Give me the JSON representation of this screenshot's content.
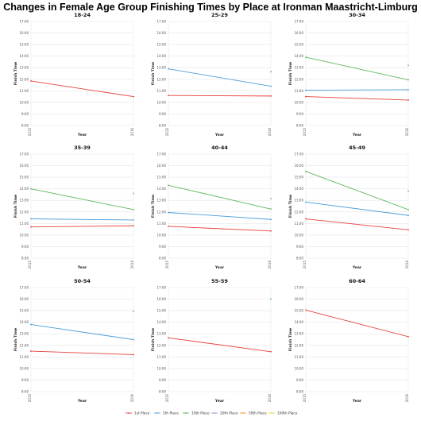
{
  "title": "Changes in Female Age Group Finishing Times by Place at Ironman Maastricht-Limburg",
  "legend": [
    "1st Place",
    "5th Place",
    "10th Place",
    "20th Place",
    "50th Place",
    "100th Place"
  ],
  "colors": {
    "1st Place": "#e8413c",
    "5th Place": "#4a9fd8",
    "10th Place": "#5cb85c",
    "20th Place": "#9b8fc4",
    "50th Place": "#f0a030",
    "100th Place": "#f0d030"
  },
  "chart_data": [
    {
      "type": "line",
      "title": "18-24",
      "xlabel": "Year",
      "ylabel": "Finish Time",
      "x": [
        "2015",
        "2016"
      ],
      "yticks": [
        "8:00",
        "9:00",
        "10:00",
        "11:00",
        "12:00",
        "13:00",
        "14:00",
        "15:00",
        "16:00",
        "17:00"
      ],
      "ylim": [
        8,
        17
      ],
      "series": [
        {
          "name": "1st Place",
          "values": [
            11.85,
            10.5
          ]
        }
      ]
    },
    {
      "type": "line",
      "title": "25-29",
      "xlabel": "Year",
      "ylabel": "Finish Time",
      "x": [
        "2015",
        "2016"
      ],
      "yticks": [
        "8:00",
        "9:00",
        "10:00",
        "11:00",
        "12:00",
        "13:00",
        "14:00",
        "15:00",
        "16:00",
        "17:00"
      ],
      "ylim": [
        8,
        17
      ],
      "series": [
        {
          "name": "1st Place",
          "values": [
            10.6,
            10.55
          ]
        },
        {
          "name": "5th Place",
          "values": [
            12.9,
            11.4
          ]
        },
        {
          "name": "10th Place",
          "values": [
            null,
            12.65
          ]
        }
      ]
    },
    {
      "type": "line",
      "title": "30-34",
      "xlabel": "Year",
      "ylabel": "Finish Time",
      "x": [
        "2015",
        "2016"
      ],
      "yticks": [
        "8:00",
        "9:00",
        "10:00",
        "11:00",
        "12:00",
        "13:00",
        "14:00",
        "15:00",
        "16:00",
        "17:00"
      ],
      "ylim": [
        8,
        17
      ],
      "series": [
        {
          "name": "1st Place",
          "values": [
            10.5,
            10.2
          ]
        },
        {
          "name": "5th Place",
          "values": [
            11.05,
            11.1
          ]
        },
        {
          "name": "10th Place",
          "values": [
            13.9,
            11.95
          ]
        },
        {
          "name": "20th Place",
          "values": [
            null,
            13.2
          ]
        }
      ]
    },
    {
      "type": "line",
      "title": "35-39",
      "xlabel": "Year",
      "ylabel": "Finish Time",
      "x": [
        "2015",
        "2016"
      ],
      "yticks": [
        "8:00",
        "9:00",
        "10:00",
        "11:00",
        "12:00",
        "13:00",
        "14:00",
        "15:00",
        "16:00",
        "17:00"
      ],
      "ylim": [
        8,
        17
      ],
      "series": [
        {
          "name": "1st Place",
          "values": [
            10.7,
            10.8
          ]
        },
        {
          "name": "5th Place",
          "values": [
            11.4,
            11.3
          ]
        },
        {
          "name": "10th Place",
          "values": [
            14.0,
            12.2
          ]
        },
        {
          "name": "20th Place",
          "values": [
            null,
            13.6
          ]
        }
      ]
    },
    {
      "type": "line",
      "title": "40-44",
      "xlabel": "Year",
      "ylabel": "Finish Time",
      "x": [
        "2015",
        "2016"
      ],
      "yticks": [
        "8:00",
        "9:00",
        "10:00",
        "11:00",
        "12:00",
        "13:00",
        "14:00",
        "15:00",
        "16:00",
        "17:00"
      ],
      "ylim": [
        8,
        17
      ],
      "series": [
        {
          "name": "1st Place",
          "values": [
            10.75,
            10.35
          ]
        },
        {
          "name": "5th Place",
          "values": [
            11.95,
            11.35
          ]
        },
        {
          "name": "10th Place",
          "values": [
            14.3,
            12.25
          ]
        },
        {
          "name": "20th Place",
          "values": [
            null,
            13.15
          ]
        }
      ]
    },
    {
      "type": "line",
      "title": "45-49",
      "xlabel": "Year",
      "ylabel": "Finish Time",
      "x": [
        "2015",
        "2016"
      ],
      "yticks": [
        "8:00",
        "9:00",
        "10:00",
        "11:00",
        "12:00",
        "13:00",
        "14:00",
        "15:00",
        "16:00",
        "17:00"
      ],
      "ylim": [
        8,
        17
      ],
      "series": [
        {
          "name": "1st Place",
          "values": [
            11.4,
            10.45
          ]
        },
        {
          "name": "5th Place",
          "values": [
            12.85,
            11.7
          ]
        },
        {
          "name": "10th Place",
          "values": [
            15.5,
            12.2
          ]
        },
        {
          "name": "20th Place",
          "values": [
            null,
            13.8
          ]
        }
      ]
    },
    {
      "type": "line",
      "title": "50-54",
      "xlabel": "Year",
      "ylabel": "Finish Time",
      "x": [
        "2015",
        "2016"
      ],
      "yticks": [
        "8:00",
        "9:00",
        "10:00",
        "11:00",
        "12:00",
        "13:00",
        "14:00",
        "15:00",
        "16:00",
        "17:00"
      ],
      "ylim": [
        8,
        17
      ],
      "series": [
        {
          "name": "1st Place",
          "values": [
            11.5,
            11.2
          ]
        },
        {
          "name": "5th Place",
          "values": [
            13.8,
            12.5
          ]
        },
        {
          "name": "10th Place",
          "values": [
            null,
            14.95
          ]
        }
      ]
    },
    {
      "type": "line",
      "title": "55-59",
      "xlabel": "Year",
      "ylabel": "Finish Time",
      "x": [
        "2015",
        "2016"
      ],
      "yticks": [
        "8:00",
        "9:00",
        "10:00",
        "11:00",
        "12:00",
        "13:00",
        "14:00",
        "15:00",
        "16:00",
        "17:00"
      ],
      "ylim": [
        8,
        17
      ],
      "series": [
        {
          "name": "1st Place",
          "values": [
            12.65,
            11.45
          ]
        },
        {
          "name": "5th Place",
          "values": [
            null,
            16.0
          ]
        }
      ]
    },
    {
      "type": "line",
      "title": "60-64",
      "xlabel": "Year",
      "ylabel": "Finish Time",
      "x": [
        "2015",
        "2016"
      ],
      "yticks": [
        "8:00",
        "9:00",
        "10:00",
        "11:00",
        "12:00",
        "13:00",
        "14:00",
        "15:00",
        "16:00",
        "17:00"
      ],
      "ylim": [
        8,
        17
      ],
      "series": [
        {
          "name": "1st Place",
          "values": [
            15.05,
            12.75
          ]
        }
      ]
    }
  ]
}
